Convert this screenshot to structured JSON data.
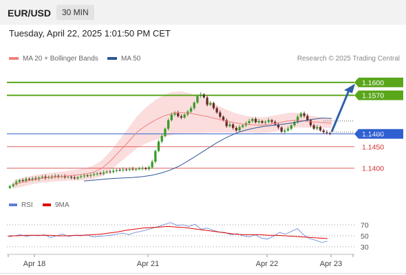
{
  "header": {
    "symbol": "EUR/USD",
    "timeframe": "30 MIN"
  },
  "datetime": "Tuesday, April 22, 2025 1:01:50 PM CET",
  "legend": [
    {
      "label": "MA 20 + Bollinger Bands",
      "color": "#f08080"
    },
    {
      "label": "MA 50",
      "color": "#2f5597"
    }
  ],
  "credit": "Research © 2025 Trading Central",
  "rsi_legend": [
    {
      "label": "RSI",
      "color": "#5b7fd6"
    },
    {
      "label": "9MA",
      "color": "#e00000"
    }
  ],
  "colors": {
    "resistance": "#5aa61b",
    "support": "#e06060",
    "pivot": "#2f5fd0",
    "arrow": "#2f5fa8",
    "candle_up": "#3a9a2a",
    "candle_down": "#6a2b2b",
    "band": "#fbd9d9"
  },
  "chart_data": [
    {
      "type": "candlestick",
      "x_labels": [
        "Apr 18",
        "Apr 21",
        "Apr 22",
        "Apr 23"
      ],
      "levels": [
        {
          "value": 1.16,
          "label": "1.1600",
          "kind": "resistance"
        },
        {
          "value": 1.157,
          "label": "1.1570",
          "kind": "resistance"
        },
        {
          "value": 1.148,
          "label": "1.1480",
          "kind": "pivot"
        },
        {
          "value": 1.145,
          "label": "1.1450",
          "kind": "support"
        },
        {
          "value": 1.14,
          "label": "1.1400",
          "kind": "support"
        }
      ],
      "last_price_label": "1.1480",
      "series": [
        {
          "name": "EUR/USD",
          "close": [
            1.1358,
            1.1362,
            1.1368,
            1.1372,
            1.137,
            1.1375,
            1.1373,
            1.1376,
            1.1374,
            1.1378,
            1.138,
            1.1377,
            1.138,
            1.1379,
            1.1382,
            1.138,
            1.1381,
            1.1379,
            1.138,
            1.1378,
            1.1376,
            1.1379,
            1.1381,
            1.1383,
            1.1382,
            1.1384,
            1.1386,
            1.1388,
            1.1387,
            1.139,
            1.1392,
            1.1391,
            1.1394,
            1.1396,
            1.1395,
            1.1397,
            1.1396,
            1.1398,
            1.1397,
            1.1398,
            1.1399,
            1.14,
            1.1398,
            1.1402,
            1.1415,
            1.144,
            1.1462,
            1.1475,
            1.1492,
            1.1512,
            1.1525,
            1.153,
            1.1521,
            1.1518,
            1.1525,
            1.1532,
            1.154,
            1.1553,
            1.1568,
            1.1572,
            1.1565,
            1.1548,
            1.1552,
            1.154,
            1.153,
            1.152,
            1.1512,
            1.1498,
            1.1502,
            1.1494,
            1.1488,
            1.1496,
            1.15,
            1.1505,
            1.151,
            1.1515,
            1.1507,
            1.151,
            1.1506,
            1.1508,
            1.1512,
            1.1508,
            1.1502,
            1.1495,
            1.1485,
            1.1488,
            1.1492,
            1.15,
            1.1508,
            1.152,
            1.1528,
            1.1522,
            1.1512,
            1.15,
            1.1492,
            1.1496,
            1.1488,
            1.1484,
            1.1482,
            1.1481
          ]
        },
        {
          "name": "MA 20",
          "values": [
            1.1362,
            1.1367,
            1.1372,
            1.1376,
            1.1378,
            1.138,
            1.1382,
            1.1384,
            1.1386,
            1.139,
            1.14,
            1.1418,
            1.144,
            1.1462,
            1.1485,
            1.15,
            1.1512,
            1.1522,
            1.1528,
            1.153,
            1.1528,
            1.1524,
            1.152,
            1.1515,
            1.151,
            1.1506,
            1.1503,
            1.1501,
            1.15,
            1.1502,
            1.1506,
            1.151,
            1.1512,
            1.151,
            1.1508,
            1.1506,
            1.1505
          ]
        },
        {
          "name": "MA 50",
          "values": [
            1.137,
            1.1372,
            1.1374,
            1.1376,
            1.1377,
            1.1378,
            1.138,
            1.1383,
            1.1388,
            1.1395,
            1.1405,
            1.1418,
            1.1432,
            1.1446,
            1.146,
            1.1472,
            1.1482,
            1.1489,
            1.1494,
            1.1498,
            1.15,
            1.1503,
            1.1506,
            1.151,
            1.1514,
            1.1517,
            1.1516
          ]
        },
        {
          "name": "RSI",
          "values": [
            48,
            50,
            52,
            49,
            51,
            50,
            52,
            47,
            50,
            53,
            49,
            51,
            50,
            52,
            48,
            49,
            50,
            51,
            53,
            55,
            52,
            56,
            58,
            61,
            64,
            67,
            71,
            74,
            69,
            70,
            67,
            71,
            62,
            64,
            60,
            57,
            56,
            52,
            54,
            50,
            48,
            52,
            46,
            44,
            49,
            56,
            53,
            58,
            63,
            52,
            45,
            42,
            38,
            40
          ]
        },
        {
          "name": "9MA",
          "values": [
            50,
            50,
            51,
            51,
            51,
            51,
            50,
            50,
            51,
            51,
            52,
            53,
            55,
            57,
            60,
            62,
            64,
            65,
            66,
            67,
            66,
            65,
            63,
            61,
            59,
            57,
            55,
            53,
            52,
            52,
            52,
            51,
            51,
            50,
            49,
            48,
            47,
            46,
            45
          ]
        }
      ],
      "rsi_levels": [
        70,
        50,
        30
      ]
    }
  ]
}
